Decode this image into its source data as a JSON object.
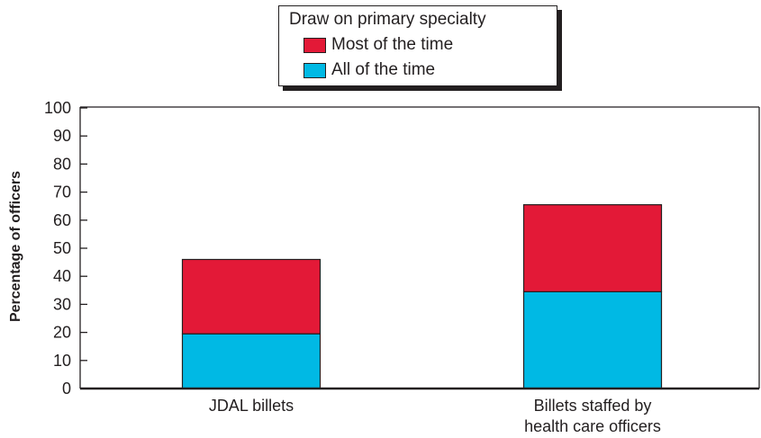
{
  "chart_data": {
    "type": "bar",
    "stacked": true,
    "categories": [
      "JDAL billets",
      "Billets staffed by\nhealth care officers"
    ],
    "series": [
      {
        "name": "All of the time",
        "color": "#00b9e4",
        "values": [
          19.5,
          34.5
        ]
      },
      {
        "name": "Most of the time",
        "color": "#e31937",
        "values": [
          26.5,
          31.0
        ]
      }
    ],
    "legend_title": "Draw on primary specialty",
    "legend_order": [
      "Most of the time",
      "All of the time"
    ],
    "legend_position": "top-center",
    "ylabel": "Percentage of officers",
    "xlabel": "",
    "ylim": [
      0,
      100
    ],
    "yticks": [
      0,
      10,
      20,
      30,
      40,
      50,
      60,
      70,
      80,
      90,
      100
    ],
    "grid": false
  }
}
